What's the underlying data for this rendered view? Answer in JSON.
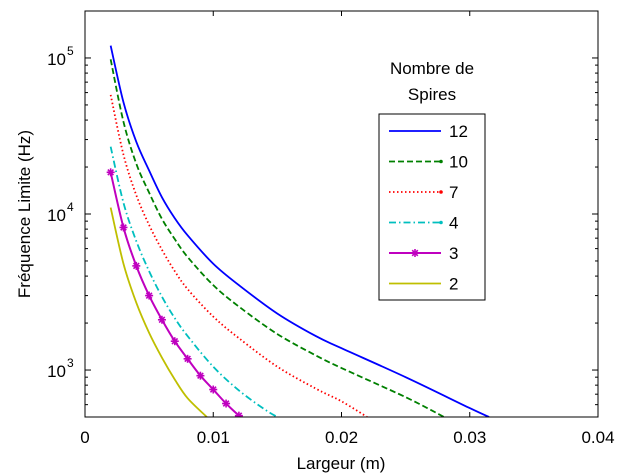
{
  "chart_data": {
    "type": "line",
    "xlabel": "Largeur (m)",
    "ylabel": "Fréquence Limite (Hz)",
    "xlim": [
      0,
      0.04
    ],
    "ylim": [
      500,
      200000
    ],
    "yscale": "log",
    "xticks": [
      {
        "value": 0,
        "label": "0"
      },
      {
        "value": 0.01,
        "label": "0.01"
      },
      {
        "value": 0.02,
        "label": "0.02"
      },
      {
        "value": 0.03,
        "label": "0.03"
      },
      {
        "value": 0.04,
        "label": "0.04"
      }
    ],
    "yticks": [
      {
        "value": 1000,
        "base": "10",
        "exp": "3"
      },
      {
        "value": 10000,
        "base": "10",
        "exp": "4"
      },
      {
        "value": 100000,
        "base": "10",
        "exp": "5"
      }
    ],
    "legend": {
      "title_lines": [
        "Nombre de",
        "Spires"
      ],
      "placement": "upper-right"
    },
    "grid": false,
    "series": [
      {
        "name": "12",
        "color": "#0000ff",
        "dash": "solid",
        "marker": "none",
        "x": [
          0.002,
          0.003,
          0.004,
          0.005,
          0.006,
          0.007,
          0.008,
          0.01,
          0.012,
          0.015,
          0.018,
          0.02,
          0.025,
          0.03,
          0.0315
        ],
        "y": [
          120000,
          52000,
          29000,
          19000,
          12800,
          9400,
          7300,
          4800,
          3500,
          2300,
          1650,
          1380,
          900,
          570,
          500
        ]
      },
      {
        "name": "10",
        "color": "#008000",
        "dash": "dashed",
        "marker": "dot",
        "x": [
          0.002,
          0.003,
          0.004,
          0.005,
          0.006,
          0.007,
          0.008,
          0.01,
          0.012,
          0.015,
          0.018,
          0.02,
          0.025,
          0.028
        ],
        "y": [
          98000,
          39000,
          21000,
          13700,
          9300,
          6900,
          5300,
          3500,
          2550,
          1700,
          1240,
          1030,
          670,
          500
        ]
      },
      {
        "name": "7",
        "color": "#ff0000",
        "dash": "dotted",
        "marker": "dot",
        "x": [
          0.002,
          0.003,
          0.004,
          0.005,
          0.006,
          0.007,
          0.008,
          0.01,
          0.012,
          0.015,
          0.018,
          0.02,
          0.022
        ],
        "y": [
          58000,
          24000,
          13200,
          8500,
          5900,
          4300,
          3300,
          2200,
          1600,
          1050,
          760,
          630,
          500
        ]
      },
      {
        "name": "4",
        "color": "#00bfbf",
        "dash": "dashdot",
        "marker": "dot",
        "x": [
          0.002,
          0.003,
          0.004,
          0.005,
          0.006,
          0.007,
          0.008,
          0.01,
          0.012,
          0.014,
          0.015
        ],
        "y": [
          27000,
          11800,
          6700,
          4300,
          2950,
          2150,
          1650,
          1050,
          740,
          560,
          500
        ]
      },
      {
        "name": "3",
        "color": "#bf00bf",
        "dash": "solid",
        "marker": "star",
        "x": [
          0.002,
          0.003,
          0.004,
          0.005,
          0.006,
          0.007,
          0.008,
          0.009,
          0.01,
          0.011,
          0.012
        ],
        "y": [
          18500,
          8200,
          4650,
          3000,
          2100,
          1530,
          1180,
          920,
          750,
          610,
          510
        ]
      },
      {
        "name": "2",
        "color": "#bfbf00",
        "dash": "solid",
        "marker": "none",
        "x": [
          0.002,
          0.003,
          0.004,
          0.005,
          0.006,
          0.007,
          0.008,
          0.0095
        ],
        "y": [
          11000,
          4800,
          2700,
          1730,
          1200,
          870,
          660,
          500
        ]
      }
    ]
  }
}
